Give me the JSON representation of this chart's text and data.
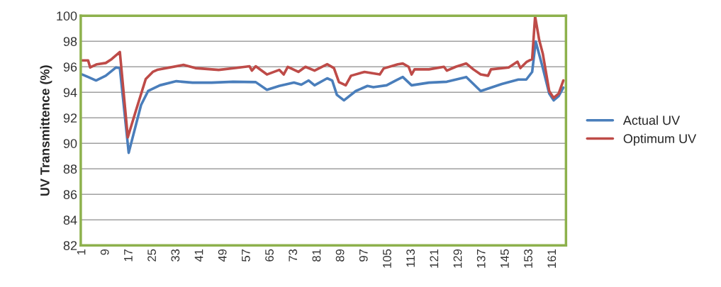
{
  "chart_data": {
    "type": "line",
    "ylabel": "UV Transmittence (%)",
    "ylim": [
      82,
      100
    ],
    "yticks": [
      82,
      84,
      86,
      88,
      90,
      92,
      94,
      96,
      98,
      100
    ],
    "xlim": [
      0.5,
      165.5
    ],
    "xticks": [
      1,
      9,
      17,
      25,
      33,
      41,
      49,
      57,
      65,
      73,
      81,
      89,
      97,
      105,
      113,
      121,
      129,
      137,
      145,
      153,
      161
    ],
    "grid": "y",
    "legend": "right",
    "marker": "none",
    "line_style": "solid",
    "series": [
      {
        "name": "Actual UV",
        "color": "#4a7ebb",
        "x": [
          1,
          3,
          5.7,
          9,
          12.5,
          13.8,
          16.8,
          21,
          23.4,
          27.4,
          33,
          38.5,
          45,
          52.3,
          60,
          63.8,
          68,
          73,
          75.5,
          78,
          80,
          84.3,
          86,
          87.6,
          90,
          94,
          98,
          100,
          104.5,
          107.6,
          110,
          113,
          118.9,
          125,
          126.8,
          131.6,
          136.5,
          143.7,
          149.3,
          152,
          154,
          155.2,
          157.6,
          159.8,
          161.3,
          163,
          164.6
        ],
        "values": [
          95.4,
          95.2,
          94.93,
          95.3,
          95.95,
          95.9,
          89.26,
          93.0,
          94.1,
          94.55,
          94.87,
          94.76,
          94.76,
          94.83,
          94.8,
          94.2,
          94.5,
          94.76,
          94.6,
          94.93,
          94.55,
          95.1,
          94.93,
          93.8,
          93.37,
          94.1,
          94.5,
          94.4,
          94.55,
          94.93,
          95.2,
          94.55,
          94.76,
          94.83,
          94.93,
          95.2,
          94.1,
          94.65,
          95.0,
          95.0,
          95.6,
          97.99,
          95.93,
          93.9,
          93.37,
          93.7,
          94.37
        ]
      },
      {
        "name": "Optimum UV",
        "color": "#be4b48",
        "x": [
          1,
          3,
          3.7,
          6,
          9,
          11,
          13.8,
          16.5,
          19.3,
          22.6,
          25,
          26.5,
          35.4,
          39.5,
          47.4,
          53,
          57.9,
          58.7,
          60,
          63.8,
          68,
          69.5,
          70.9,
          74.5,
          76.9,
          80,
          84.3,
          86.6,
          88.3,
          90.6,
          92.4,
          97,
          102.2,
          103.5,
          108.3,
          110,
          112,
          113,
          114,
          118.9,
          124,
          125,
          128,
          131.6,
          134,
          136.5,
          139,
          140,
          146,
          149,
          150,
          152.2,
          154,
          155,
          156.4,
          157.6,
          159.8,
          161.3,
          163,
          164.6
        ],
        "values": [
          96.5,
          96.5,
          95.95,
          96.2,
          96.3,
          96.6,
          97.16,
          90.47,
          92.6,
          95.04,
          95.6,
          95.76,
          96.15,
          95.9,
          95.76,
          95.9,
          96.04,
          95.7,
          96.04,
          95.4,
          95.76,
          95.4,
          96.0,
          95.6,
          96.0,
          95.7,
          96.2,
          95.9,
          94.8,
          94.55,
          95.3,
          95.6,
          95.4,
          95.87,
          96.2,
          96.26,
          96.0,
          95.4,
          95.8,
          95.8,
          96.0,
          95.7,
          96.0,
          96.26,
          95.8,
          95.4,
          95.3,
          95.8,
          95.95,
          96.4,
          95.9,
          96.4,
          96.6,
          99.95,
          98.1,
          97.05,
          94.1,
          93.56,
          93.9,
          94.93
        ]
      }
    ]
  }
}
